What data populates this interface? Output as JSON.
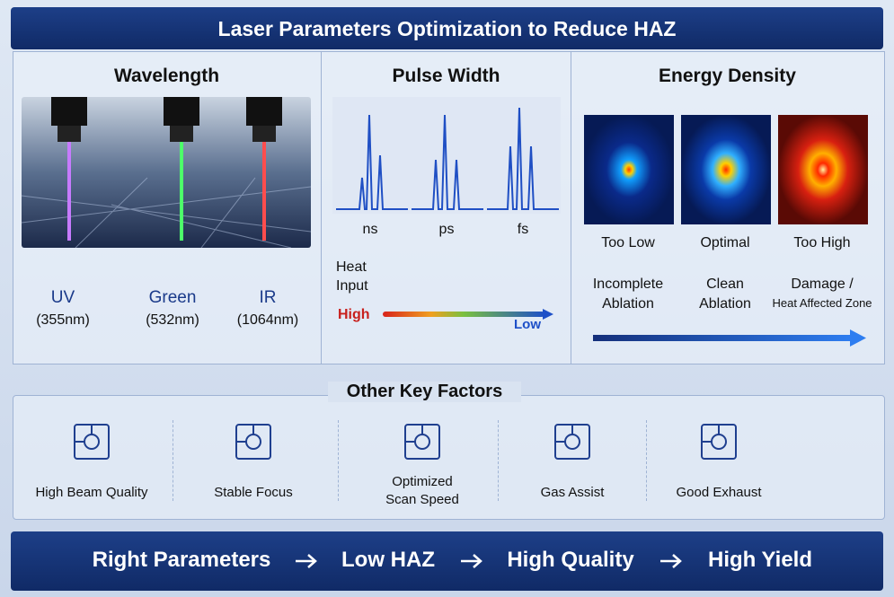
{
  "header": {
    "title": "Laser Parameters Optimization to Reduce HAZ"
  },
  "wavelength": {
    "title": "Wavelength",
    "items": [
      {
        "label": "UV",
        "sub": "(355nm)"
      },
      {
        "label": "Green",
        "sub": "(532nm)"
      },
      {
        "label": "IR",
        "sub": "(1064nm)"
      }
    ]
  },
  "pulse_width": {
    "title": "Pulse Width",
    "labels": [
      "ns",
      "ps",
      "fs"
    ],
    "heat_input": [
      "Heat",
      "Input"
    ],
    "high": "High",
    "low": "Low"
  },
  "energy_density": {
    "title": "Energy Density",
    "levels": [
      {
        "label": "Too Low",
        "result": [
          "Incomplete",
          "Ablation"
        ]
      },
      {
        "label": "Optimal",
        "result": [
          "Clean",
          "Ablation"
        ]
      },
      {
        "label": "Too High",
        "result": [
          "Damage /",
          "Heat Affected Zone"
        ]
      }
    ]
  },
  "other_factors": {
    "title": "Other Key Factors",
    "items": [
      [
        "High Beam Quality"
      ],
      [
        "Stable Focus"
      ],
      [
        "Optimized",
        "Scan Speed"
      ],
      [
        "Gas Assist"
      ],
      [
        "Good Exhaust"
      ]
    ]
  },
  "footer": {
    "steps": [
      "Right Parameters",
      "Low HAZ",
      "High Quality",
      "High Yield"
    ]
  }
}
